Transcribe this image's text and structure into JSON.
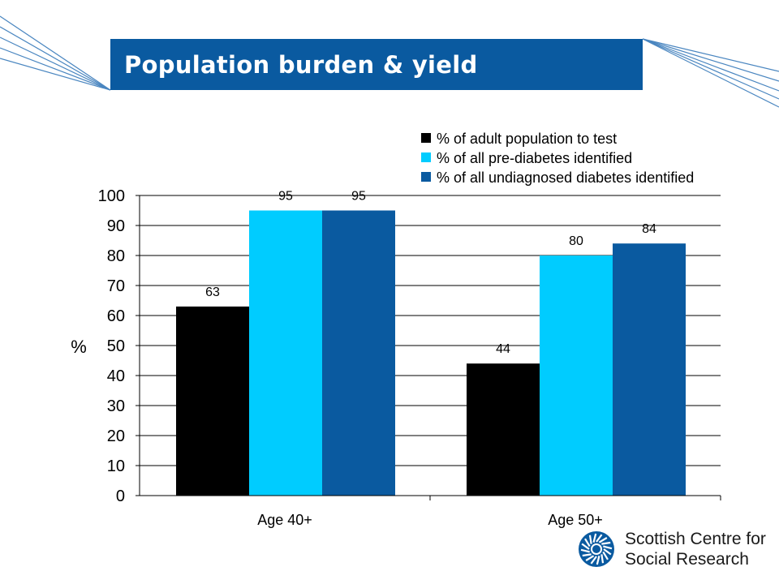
{
  "slide": {
    "title": "Population burden & yield"
  },
  "logo": {
    "line1": "Scottish Centre for",
    "line2": "Social Research",
    "icon": "sun-circle-icon"
  },
  "colors": {
    "title_bar": "#0a5aa0",
    "series_black": "#000000",
    "series_cyan": "#00ccff",
    "series_blue": "#0a5aa0"
  },
  "chart_data": {
    "type": "bar",
    "title": "",
    "xlabel": "",
    "ylabel": "%",
    "ylim": [
      0,
      100
    ],
    "yticks": [
      0,
      10,
      20,
      30,
      40,
      50,
      60,
      70,
      80,
      90,
      100
    ],
    "grid": true,
    "legend_position": "top-right",
    "categories": [
      "Age 40+",
      "Age 50+"
    ],
    "series": [
      {
        "name": "% of adult population to test",
        "color": "#000000",
        "values": [
          63,
          44
        ]
      },
      {
        "name": "% of all pre-diabetes identified",
        "color": "#00ccff",
        "values": [
          95,
          80
        ]
      },
      {
        "name": "% of all undiagnosed diabetes identified",
        "color": "#0a5aa0",
        "values": [
          95,
          84
        ]
      }
    ]
  }
}
